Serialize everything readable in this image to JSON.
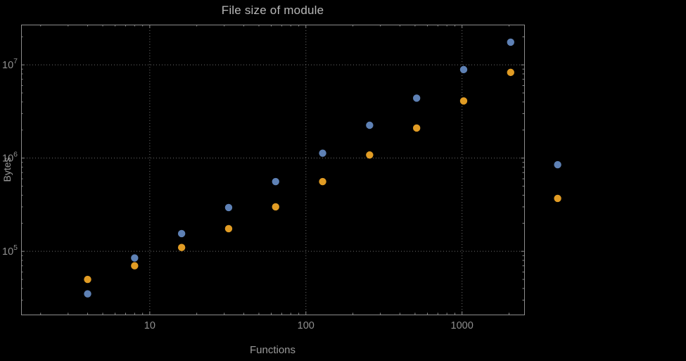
{
  "chart_data": {
    "type": "scatter",
    "title": "File size of module",
    "xlabel": "Functions",
    "ylabel": "Bytes",
    "x_scale": "log",
    "y_scale": "log",
    "xlim": [
      1.5,
      2500
    ],
    "ylim": [
      21000,
      27000000
    ],
    "x_major_ticks": [
      10,
      100,
      1000
    ],
    "y_major_ticks": [
      100000,
      1000000,
      10000000
    ],
    "grid": "dotted-at-major-ticks",
    "legend": "none",
    "frame": true,
    "x": [
      4,
      8,
      16,
      32,
      64,
      128,
      256,
      512,
      1024,
      2048,
      4096
    ],
    "series": [
      {
        "name": "blue",
        "color": "#5e81b5",
        "values": [
          35000,
          85000,
          155000,
          295000,
          560000,
          1130000,
          2250000,
          4400000,
          8900000,
          17500000,
          850000
        ]
      },
      {
        "name": "orange",
        "color": "#e19c24",
        "values": [
          50000,
          70000,
          110000,
          175000,
          300000,
          560000,
          1080000,
          2100000,
          4100000,
          8300000,
          370000
        ]
      }
    ],
    "colors": {
      "background": "#000000",
      "frame": "#8c8c8c",
      "grid": "#6e6e6e",
      "title_text": "#b8b8b8",
      "axis_text": "#9a9a9a",
      "tick_text": "#8f8f8f"
    }
  }
}
